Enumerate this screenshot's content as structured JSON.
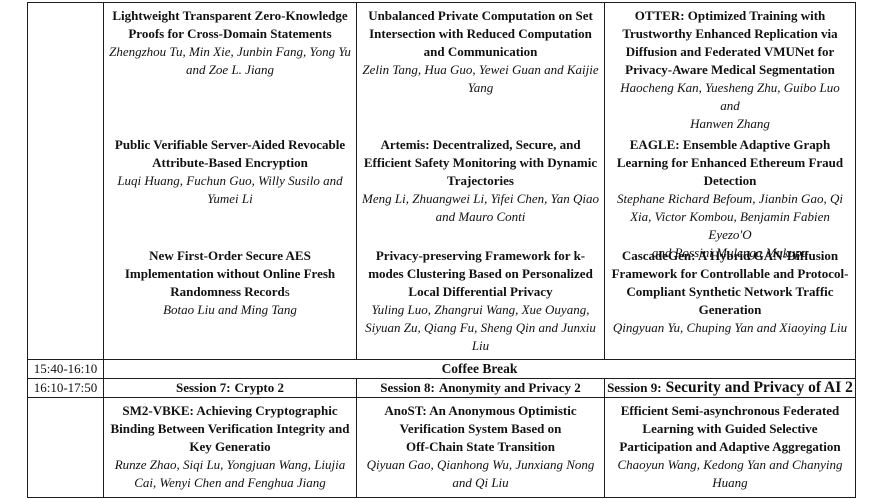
{
  "colors": {
    "border": "#1d1d1d",
    "text": "#111111",
    "background": "#ffffff"
  },
  "slot1": {
    "time": "",
    "columns": [
      {
        "papers": [
          {
            "title": "Lightweight Transparent Zero-Knowledge\nProofs for Cross-Domain Statements",
            "authors": "Zhengzhou Tu, Min Xie, Junbin Fang, Yong Yu\nand Zoe L. Jiang"
          },
          {
            "title": "Public Verifiable Server-Aided Revocable\nAttribute-Based Encryption",
            "authors": "Luqi Huang, Fuchun Guo, Willy Susilo and\nYumei Li"
          },
          {
            "title": "New First-Order Secure AES\nImplementation without Online Fresh\nRandomness Record",
            "title_tail": "s",
            "authors": "Botao Liu and Ming Tang"
          }
        ]
      },
      {
        "papers": [
          {
            "title": "Unbalanced Private Computation on Set\nIntersection with Reduced Computation\nand Communication",
            "authors": "Zelin Tang, Hua Guo, Yewei Guan and Kaijie\nYang"
          },
          {
            "title": "Artemis: Decentralized, Secure, and\nEfficient Safety Monitoring with Dynamic\nTrajectories",
            "authors": "Meng Li, Zhuangwei Li, Yifei Chen, Yan Qiao\nand Mauro Conti"
          },
          {
            "title": "Privacy-preserving Framework for k-\nmodes Clustering Based on Personalized\nLocal Differential Privacy",
            "authors": "Yuling Luo, Zhangrui Wang, Xue Ouyang,\nSiyuan Zu, Qiang Fu, Sheng Qin and Junxiu\nLiu"
          }
        ]
      },
      {
        "papers": [
          {
            "title": "OTTER: Optimized Training with\nTrustworthy Enhanced Replication via\nDiffusion and Federated VMUNet for\nPrivacy-Aware Medical Segmentation",
            "authors": "Haocheng Kan, Yuesheng Zhu, Guibo Luo and\nHanwen Zhang"
          },
          {
            "title": "EAGLE: Ensemble Adaptive Graph\nLearning for Enhanced Ethereum Fraud\nDetection",
            "authors": "Stephane Richard Befoum, Jianbin Gao, Qi\nXia, Victor Kombou, Benjamin Fabien Eyezo'O\nand Rossini Mulenga Mukupa"
          },
          {
            "title": "CascadeGen: A Hybrid GAN-Diffusion\nFramework for Controllable and Protocol-\nCompliant Synthetic Network Traffic\nGeneration",
            "authors": "Qingyuan Yu, Chuping Yan and Xiaoying Liu"
          }
        ]
      }
    ]
  },
  "break_row": {
    "time": "15:40-16:10",
    "label": "Coffee Break"
  },
  "session_row": {
    "time": "16:10-17:50",
    "sessions": [
      {
        "prefix": "Session 7:",
        "name": "Crypto 2"
      },
      {
        "prefix": "Session 8:",
        "name": "Anonymity and Privacy 2"
      },
      {
        "prefix": "Session 9:",
        "name": "Security and Privacy of AI 2"
      }
    ]
  },
  "slot2": {
    "time": "",
    "columns": [
      {
        "papers": [
          {
            "title": "SM2-VBKE: Achieving Cryptographic\nBinding Between Verification Integrity and\nKey Generatio",
            "authors": "Runze Zhao, Siqi Lu, Yongjuan Wang, Liujia\nCai, Wenyi Chen and Fenghua Jiang"
          }
        ]
      },
      {
        "papers": [
          {
            "title": "AnoST: An Anonymous Optimistic\nVerification System Based on\nOff-Chain State Transition",
            "authors": "Qiyuan Gao, Qianhong Wu, Junxiang Nong\nand Qi Liu"
          }
        ]
      },
      {
        "papers": [
          {
            "title": "Efficient Semi-asynchronous Federated\nLearning with Guided Selective\nParticipation and Adaptive Aggregation",
            "authors": "Chaoyun Wang, Kedong Yan and Chanying\nHuang"
          }
        ]
      }
    ]
  }
}
